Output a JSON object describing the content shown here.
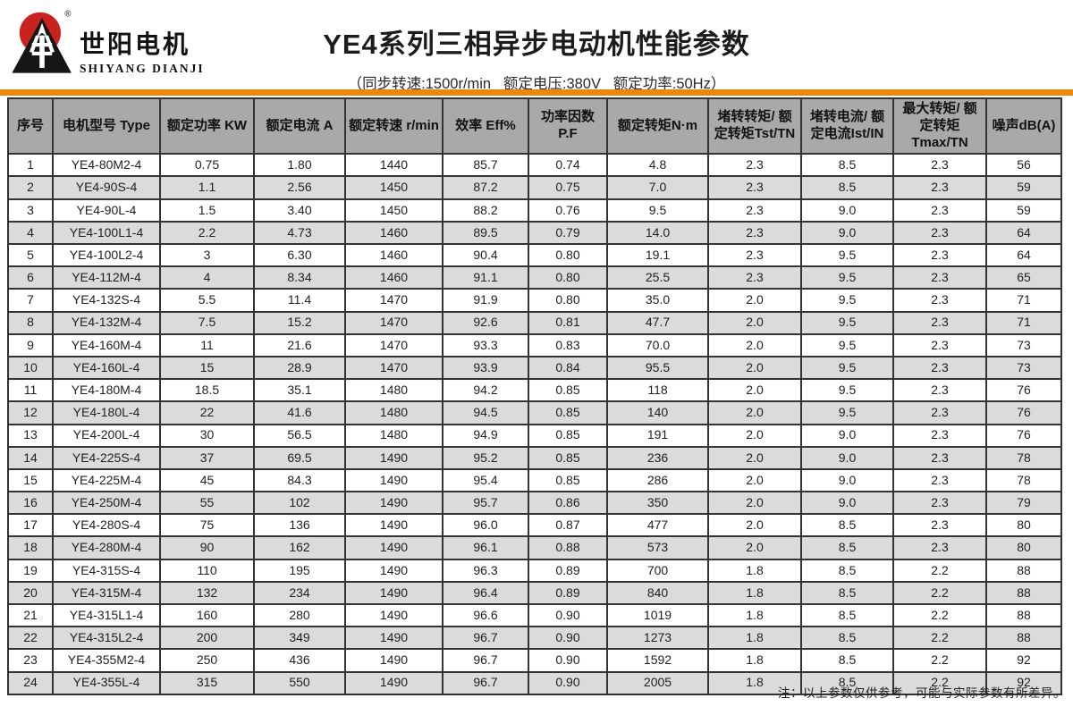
{
  "logo": {
    "brand_cn": "世阳电机",
    "brand_en": "SHIYANG DIANJI",
    "registered_mark": "®"
  },
  "header": {
    "title": "YE4系列三相异步电动机性能参数",
    "subtitle": "（同步转速:1500r/min   额定电压:380V   额定功率:50Hz）"
  },
  "colors": {
    "accent_orange": "#EC860D",
    "header_gray": "#A9A9A9",
    "row_alt_gray": "#DBDBDB",
    "logo_red": "#C8231E",
    "border_dark": "#333333"
  },
  "table": {
    "columns": [
      "序号",
      "电机型号 Type",
      "额定功率 KW",
      "额定电流 A",
      "额定转速 r/min",
      "效率 Eff%",
      "功率因数P.F",
      "额定转矩N·m",
      "堵转转矩/ 额定转矩Tst/TN",
      "堵转电流/ 额定电流Ist/IN",
      "最大转矩/ 额定转矩Tmax/TN",
      "噪声dB(A)"
    ],
    "rows": [
      [
        "1",
        "YE4-80M2-4",
        "0.75",
        "1.80",
        "1440",
        "85.7",
        "0.74",
        "4.8",
        "2.3",
        "8.5",
        "2.3",
        "56"
      ],
      [
        "2",
        "YE4-90S-4",
        "1.1",
        "2.56",
        "1450",
        "87.2",
        "0.75",
        "7.0",
        "2.3",
        "8.5",
        "2.3",
        "59"
      ],
      [
        "3",
        "YE4-90L-4",
        "1.5",
        "3.40",
        "1450",
        "88.2",
        "0.76",
        "9.5",
        "2.3",
        "9.0",
        "2.3",
        "59"
      ],
      [
        "4",
        "YE4-100L1-4",
        "2.2",
        "4.73",
        "1460",
        "89.5",
        "0.79",
        "14.0",
        "2.3",
        "9.0",
        "2.3",
        "64"
      ],
      [
        "5",
        "YE4-100L2-4",
        "3",
        "6.30",
        "1460",
        "90.4",
        "0.80",
        "19.1",
        "2.3",
        "9.5",
        "2.3",
        "64"
      ],
      [
        "6",
        "YE4-112M-4",
        "4",
        "8.34",
        "1460",
        "91.1",
        "0.80",
        "25.5",
        "2.3",
        "9.5",
        "2.3",
        "65"
      ],
      [
        "7",
        "YE4-132S-4",
        "5.5",
        "11.4",
        "1470",
        "91.9",
        "0.80",
        "35.0",
        "2.0",
        "9.5",
        "2.3",
        "71"
      ],
      [
        "8",
        "YE4-132M-4",
        "7.5",
        "15.2",
        "1470",
        "92.6",
        "0.81",
        "47.7",
        "2.0",
        "9.5",
        "2.3",
        "71"
      ],
      [
        "9",
        "YE4-160M-4",
        "11",
        "21.6",
        "1470",
        "93.3",
        "0.83",
        "70.0",
        "2.0",
        "9.5",
        "2.3",
        "73"
      ],
      [
        "10",
        "YE4-160L-4",
        "15",
        "28.9",
        "1470",
        "93.9",
        "0.84",
        "95.5",
        "2.0",
        "9.5",
        "2.3",
        "73"
      ],
      [
        "11",
        "YE4-180M-4",
        "18.5",
        "35.1",
        "1480",
        "94.2",
        "0.85",
        "118",
        "2.0",
        "9.5",
        "2.3",
        "76"
      ],
      [
        "12",
        "YE4-180L-4",
        "22",
        "41.6",
        "1480",
        "94.5",
        "0.85",
        "140",
        "2.0",
        "9.5",
        "2.3",
        "76"
      ],
      [
        "13",
        "YE4-200L-4",
        "30",
        "56.5",
        "1480",
        "94.9",
        "0.85",
        "191",
        "2.0",
        "9.0",
        "2.3",
        "76"
      ],
      [
        "14",
        "YE4-225S-4",
        "37",
        "69.5",
        "1490",
        "95.2",
        "0.85",
        "236",
        "2.0",
        "9.0",
        "2.3",
        "78"
      ],
      [
        "15",
        "YE4-225M-4",
        "45",
        "84.3",
        "1490",
        "95.4",
        "0.85",
        "286",
        "2.0",
        "9.0",
        "2.3",
        "78"
      ],
      [
        "16",
        "YE4-250M-4",
        "55",
        "102",
        "1490",
        "95.7",
        "0.86",
        "350",
        "2.0",
        "9.0",
        "2.3",
        "79"
      ],
      [
        "17",
        "YE4-280S-4",
        "75",
        "136",
        "1490",
        "96.0",
        "0.87",
        "477",
        "2.0",
        "8.5",
        "2.3",
        "80"
      ],
      [
        "18",
        "YE4-280M-4",
        "90",
        "162",
        "1490",
        "96.1",
        "0.88",
        "573",
        "2.0",
        "8.5",
        "2.3",
        "80"
      ],
      [
        "19",
        "YE4-315S-4",
        "110",
        "195",
        "1490",
        "96.3",
        "0.89",
        "700",
        "1.8",
        "8.5",
        "2.2",
        "88"
      ],
      [
        "20",
        "YE4-315M-4",
        "132",
        "234",
        "1490",
        "96.4",
        "0.89",
        "840",
        "1.8",
        "8.5",
        "2.2",
        "88"
      ],
      [
        "21",
        "YE4-315L1-4",
        "160",
        "280",
        "1490",
        "96.6",
        "0.90",
        "1019",
        "1.8",
        "8.5",
        "2.2",
        "88"
      ],
      [
        "22",
        "YE4-315L2-4",
        "200",
        "349",
        "1490",
        "96.7",
        "0.90",
        "1273",
        "1.8",
        "8.5",
        "2.2",
        "88"
      ],
      [
        "23",
        "YE4-355M2-4",
        "250",
        "436",
        "1490",
        "96.7",
        "0.90",
        "1592",
        "1.8",
        "8.5",
        "2.2",
        "92"
      ],
      [
        "24",
        "YE4-355L-4",
        "315",
        "550",
        "1490",
        "96.7",
        "0.90",
        "2005",
        "1.8",
        "8.5",
        "2.2",
        "92"
      ]
    ]
  },
  "footer": {
    "note": "注：以上参数仅供参考，可能与实际参数有所差异。"
  }
}
